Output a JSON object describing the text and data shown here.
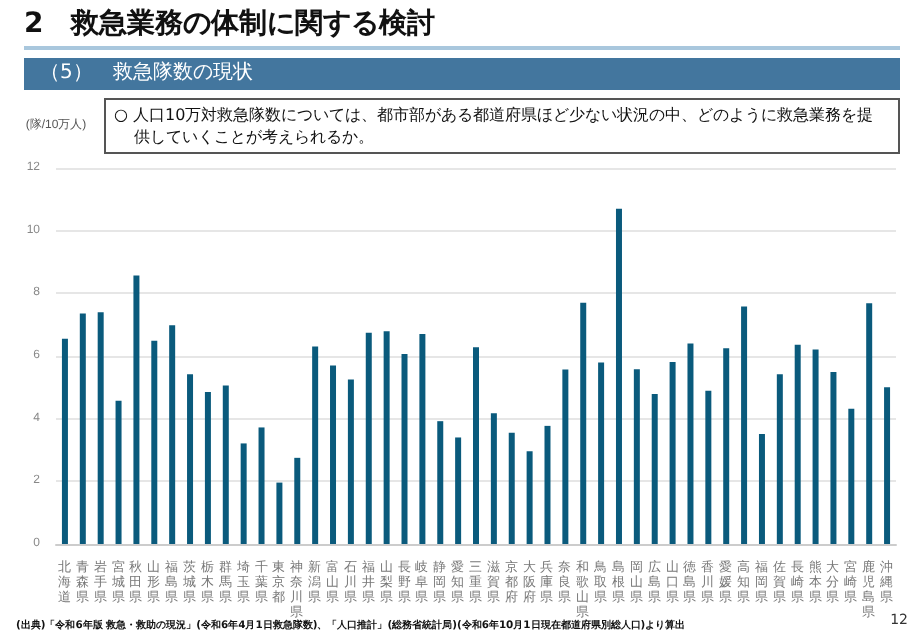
{
  "chart_data": {
    "type": "bar",
    "title": "2　救急業務の体制に関する検討",
    "subtitle": "（5）　救急隊数の現状",
    "ylabel": "(隊/10万人)",
    "annotations": [
      "○ 人口10万対救急隊数については、都市部がある都道府県ほど少ない状況の中、どのように救急業務を提供していくことが考えられるか。",
      "(出典)「令和6年版 救急・救助の現況」(令和6年4月1日救急隊数)、「人口推計」(総務省統計局)(令和6年10月1日現在都道府県別総人口)より算出",
      "12"
    ],
    "categories": [
      "北海道",
      "青森県",
      "岩手県",
      "宮城県",
      "秋田県",
      "山形県",
      "福島県",
      "茨城県",
      "栃木県",
      "群馬県",
      "埼玉県",
      "千葉県",
      "東京都",
      "神奈川県",
      "新潟県",
      "富山県",
      "石川県",
      "福井県",
      "山梨県",
      "長野県",
      "岐阜県",
      "静岡県",
      "愛知県",
      "三重県",
      "滋賀県",
      "京都府",
      "大阪府",
      "兵庫県",
      "奈良県",
      "和歌山県",
      "鳥取県",
      "島根県",
      "岡山県",
      "広島県",
      "山口県",
      "徳島県",
      "香川県",
      "愛媛県",
      "高知県",
      "福岡県",
      "佐賀県",
      "長崎県",
      "熊本県",
      "大分県",
      "宮崎県",
      "鹿児島県",
      "沖縄県"
    ],
    "values": [
      6.55,
      7.36,
      7.4,
      4.57,
      8.57,
      6.49,
      6.98,
      5.42,
      4.85,
      5.06,
      3.21,
      3.72,
      1.96,
      2.75,
      6.3,
      5.7,
      5.25,
      6.74,
      6.79,
      6.06,
      6.7,
      3.92,
      3.4,
      6.28,
      4.17,
      3.55,
      2.96,
      3.77,
      5.57,
      7.7,
      5.79,
      10.7,
      5.58,
      4.79,
      5.81,
      6.4,
      4.89,
      6.25,
      7.58,
      3.51,
      5.42,
      6.36,
      6.21,
      5.49,
      4.32,
      7.68,
      5.0
    ],
    "color": "#0a5a7c",
    "ylim": [
      0,
      12
    ],
    "yticks": [
      0,
      2,
      4,
      6,
      8,
      10,
      12
    ],
    "grid": "y"
  }
}
